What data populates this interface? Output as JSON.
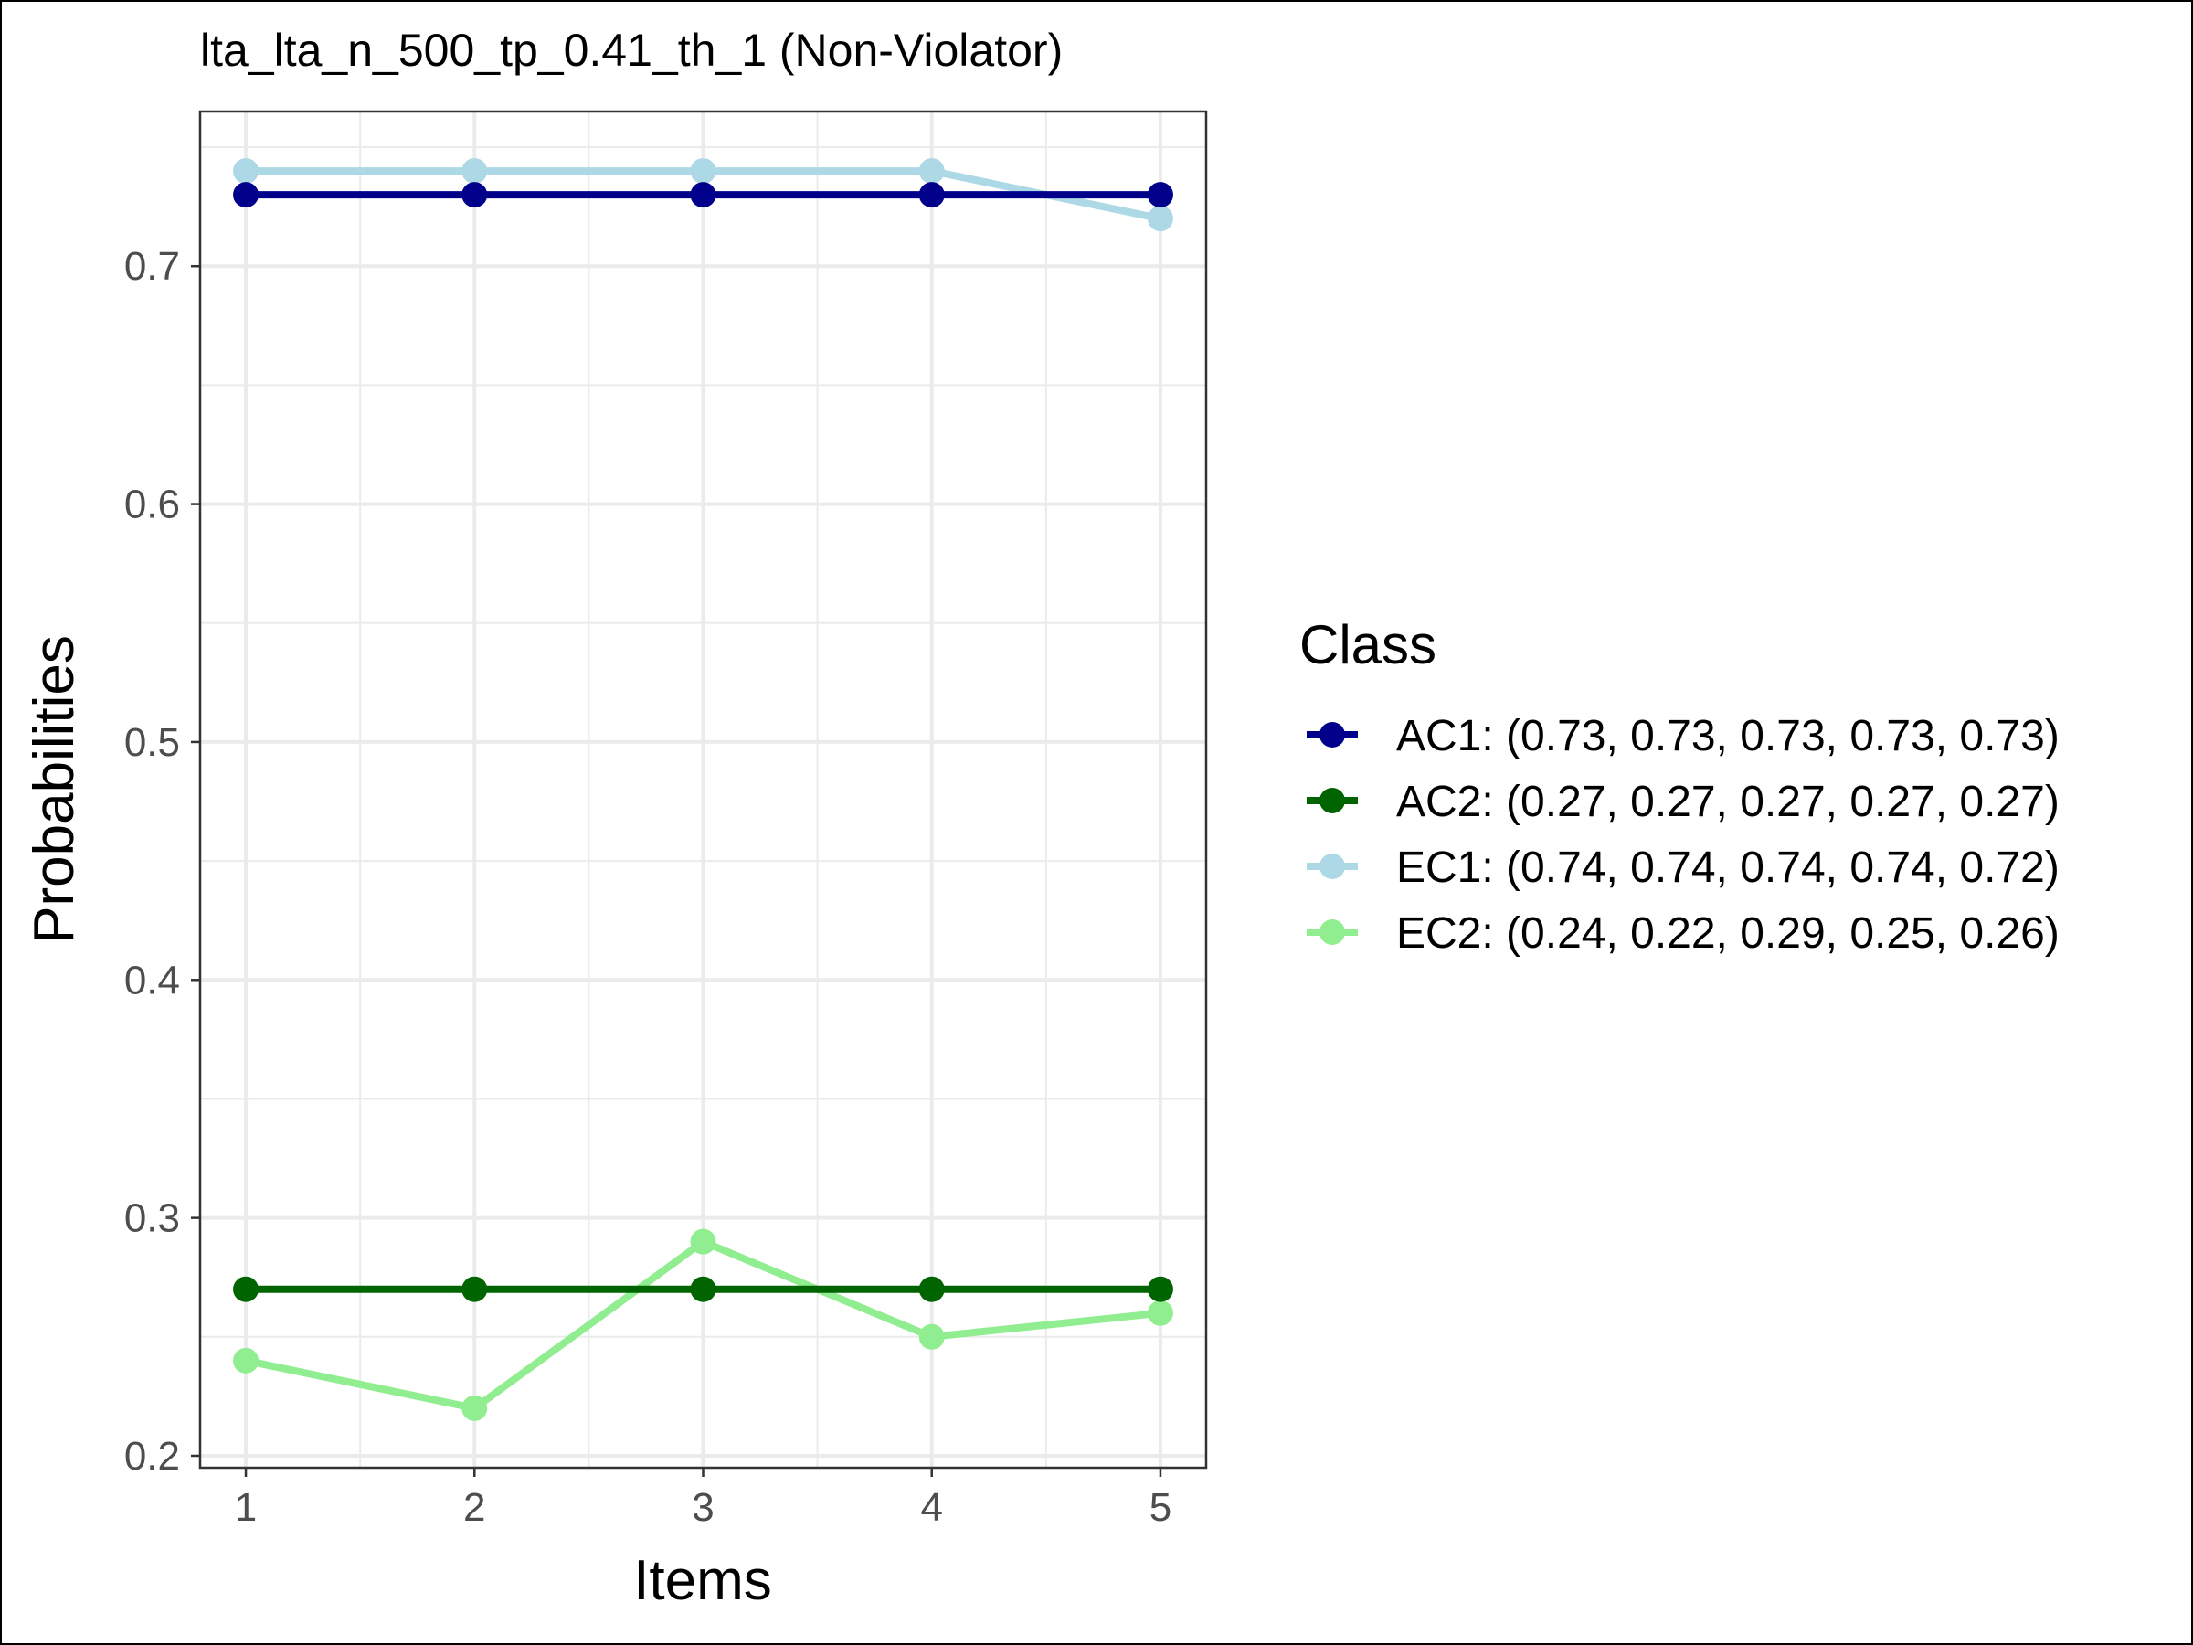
{
  "chart_data": {
    "type": "line",
    "title": "lta_lta_n_500_tp_0.41_th_1 (Non-Violator)",
    "xlabel": "Items",
    "ylabel": "Probabilities",
    "x": [
      1,
      2,
      3,
      4,
      5
    ],
    "xticks": [
      "1",
      "2",
      "3",
      "4",
      "5"
    ],
    "xlim": [
      0.8,
      5.2
    ],
    "ylim": [
      0.195,
      0.765
    ],
    "yticks": [
      "0.2",
      "0.3",
      "0.4",
      "0.5",
      "0.6",
      "0.7"
    ],
    "grid": true,
    "legend": {
      "title": "Class",
      "position": "right"
    },
    "series": [
      {
        "name": "AC1",
        "label": "AC1: (0.73, 0.73, 0.73, 0.73, 0.73)",
        "color": "#00008b",
        "values": [
          0.73,
          0.73,
          0.73,
          0.73,
          0.73
        ]
      },
      {
        "name": "AC2",
        "label": "AC2: (0.27, 0.27, 0.27, 0.27, 0.27)",
        "color": "#006400",
        "values": [
          0.27,
          0.27,
          0.27,
          0.27,
          0.27
        ]
      },
      {
        "name": "EC1",
        "label": "EC1: (0.74, 0.74, 0.74, 0.74, 0.72)",
        "color": "#add8e6",
        "values": [
          0.74,
          0.74,
          0.74,
          0.74,
          0.72
        ]
      },
      {
        "name": "EC2",
        "label": "EC2: (0.24, 0.22, 0.29, 0.25, 0.26)",
        "color": "#90ee90",
        "values": [
          0.24,
          0.22,
          0.29,
          0.25,
          0.26
        ]
      }
    ]
  }
}
